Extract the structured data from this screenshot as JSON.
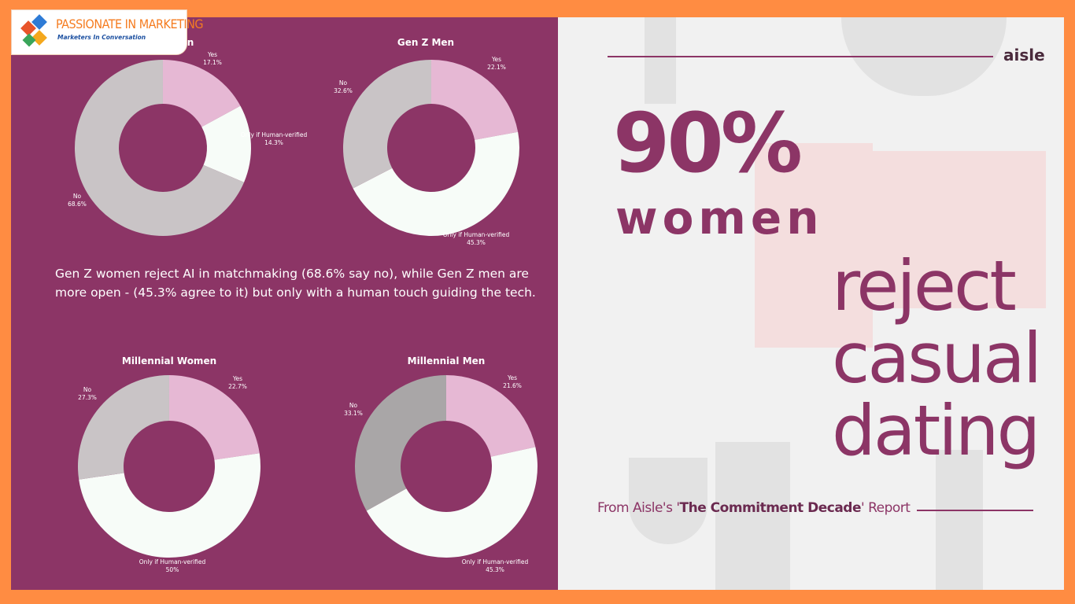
{
  "logo": {
    "name": "PASSIONATE IN MARKETING",
    "tagline": "Marketers In Conversation"
  },
  "caption": "Gen Z women reject AI in matchmaking (68.6% say no), while Gen Z men are more open - (45.3% agree to it) but only with a human touch guiding the tech.",
  "headline": {
    "brand": "aisle",
    "percent": "90%",
    "subject": "women",
    "line1": "reject",
    "line2": "casual",
    "line3": "dating",
    "source_prefix": "From Aisle's '",
    "source_title": "The Commitment Decade",
    "source_suffix": "' Report"
  },
  "colors": {
    "panel": "#8c3566",
    "yes": "#e6b8d4",
    "verified": "#f7fcf8",
    "no_light": "#c9c4c6",
    "no_dark": "#a9a6a7",
    "orange_border": "#ff8c42"
  },
  "chart_data": [
    {
      "type": "pie",
      "title": "Gen Z Women",
      "title_visible": "en",
      "slices": [
        {
          "label": "Yes",
          "value": 17.1,
          "display": "17.1%"
        },
        {
          "label": "Only if Human-verified",
          "value": 14.3,
          "display": "14.3%"
        },
        {
          "label": "No",
          "value": 68.6,
          "display": "68.6%"
        }
      ]
    },
    {
      "type": "pie",
      "title": "Gen Z Men",
      "slices": [
        {
          "label": "Yes",
          "value": 22.1,
          "display": "22.1%"
        },
        {
          "label": "Only if Human-verified",
          "value": 45.3,
          "display": "45.3%"
        },
        {
          "label": "No",
          "value": 32.6,
          "display": "32.6%"
        }
      ]
    },
    {
      "type": "pie",
      "title": "Millennial Women",
      "slices": [
        {
          "label": "Yes",
          "value": 22.7,
          "display": "22.7%"
        },
        {
          "label": "Only if Human-verified",
          "value": 50,
          "display": "50%"
        },
        {
          "label": "No",
          "value": 27.3,
          "display": "27.3%"
        }
      ]
    },
    {
      "type": "pie",
      "title": "Millennial Men",
      "slices": [
        {
          "label": "Yes",
          "value": 21.6,
          "display": "21.6%"
        },
        {
          "label": "Only if Human-verified",
          "value": 45.3,
          "display": "45.3%"
        },
        {
          "label": "No",
          "value": 33.1,
          "display": "33.1%"
        }
      ]
    }
  ]
}
